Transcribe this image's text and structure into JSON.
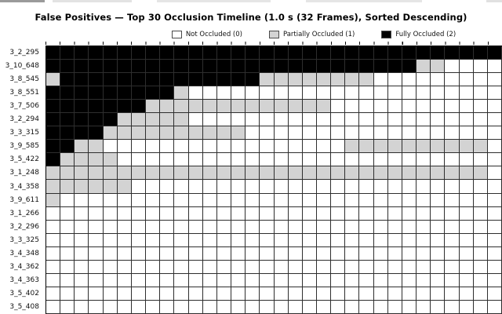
{
  "page": {
    "title": "False Positives — Top 30 Occlusion Timeline (1.0 s (32 Frames), Sorted Descending)"
  },
  "legend": [
    {
      "label": "Not Occluded (0)",
      "color": "#ffffff"
    },
    {
      "label": "Partially Occluded (1)",
      "color": "#d3d3d3"
    },
    {
      "label": "Fully Occluded (2)",
      "color": "#000000"
    }
  ],
  "chart_data": {
    "type": "heatmap",
    "title": "False Positives — Top 30 Occlusion Timeline (1.0 s (32 Frames), Sorted Descending)",
    "frames": 32,
    "rows_stated_in_title": 30,
    "rows_visible": 20,
    "value_states": [
      {
        "value": 0,
        "label": "Not Occluded (0)",
        "color": "#ffffff"
      },
      {
        "value": 1,
        "label": "Partially Occluded (1)",
        "color": "#d3d3d3"
      },
      {
        "value": 2,
        "label": "Fully Occluded (2)",
        "color": "#000000"
      }
    ],
    "grid": {
      "lines": "on",
      "line_color": "#2e2e2e"
    },
    "rows": [
      {
        "id": "3_2_295",
        "values": [
          2,
          2,
          2,
          2,
          2,
          2,
          2,
          2,
          2,
          2,
          2,
          2,
          2,
          2,
          2,
          2,
          2,
          2,
          2,
          2,
          2,
          2,
          2,
          2,
          2,
          2,
          2,
          2,
          2,
          2,
          2,
          2
        ]
      },
      {
        "id": "3_10_648",
        "values": [
          2,
          2,
          2,
          2,
          2,
          2,
          2,
          2,
          2,
          2,
          2,
          2,
          2,
          2,
          2,
          2,
          2,
          2,
          2,
          2,
          2,
          2,
          2,
          2,
          2,
          2,
          1,
          1,
          0,
          0,
          0,
          0
        ]
      },
      {
        "id": "3_8_545",
        "values": [
          1,
          2,
          2,
          2,
          2,
          2,
          2,
          2,
          2,
          2,
          2,
          2,
          2,
          2,
          2,
          1,
          1,
          1,
          1,
          1,
          1,
          1,
          1,
          0,
          0,
          0,
          0,
          0,
          0,
          0,
          0,
          0
        ]
      },
      {
        "id": "3_8_551",
        "values": [
          2,
          2,
          2,
          2,
          2,
          2,
          2,
          2,
          2,
          1,
          0,
          0,
          0,
          0,
          0,
          0,
          0,
          0,
          0,
          0,
          0,
          0,
          0,
          0,
          0,
          0,
          0,
          0,
          0,
          0,
          0,
          0
        ]
      },
      {
        "id": "3_7_506",
        "values": [
          2,
          2,
          2,
          2,
          2,
          2,
          2,
          1,
          1,
          1,
          1,
          1,
          1,
          1,
          1,
          1,
          1,
          1,
          1,
          1,
          0,
          0,
          0,
          0,
          0,
          0,
          0,
          0,
          0,
          0,
          0,
          0
        ]
      },
      {
        "id": "3_2_294",
        "values": [
          2,
          2,
          2,
          2,
          2,
          1,
          1,
          1,
          1,
          1,
          0,
          0,
          0,
          0,
          0,
          0,
          0,
          0,
          0,
          0,
          0,
          0,
          0,
          0,
          0,
          0,
          0,
          0,
          0,
          0,
          0,
          0
        ]
      },
      {
        "id": "3_3_315",
        "values": [
          2,
          2,
          2,
          2,
          1,
          1,
          1,
          1,
          1,
          1,
          1,
          1,
          1,
          1,
          0,
          0,
          0,
          0,
          0,
          0,
          0,
          0,
          0,
          0,
          0,
          0,
          0,
          0,
          0,
          0,
          0,
          0
        ]
      },
      {
        "id": "3_9_585",
        "values": [
          2,
          2,
          1,
          1,
          0,
          0,
          0,
          0,
          0,
          0,
          0,
          0,
          0,
          0,
          0,
          0,
          0,
          0,
          0,
          0,
          0,
          1,
          1,
          1,
          1,
          1,
          1,
          1,
          1,
          1,
          1,
          0
        ]
      },
      {
        "id": "3_5_422",
        "values": [
          2,
          1,
          1,
          1,
          1,
          0,
          0,
          0,
          0,
          0,
          0,
          0,
          0,
          0,
          0,
          0,
          0,
          0,
          0,
          0,
          0,
          0,
          0,
          0,
          0,
          0,
          0,
          0,
          0,
          0,
          0,
          0
        ]
      },
      {
        "id": "3_1_248",
        "values": [
          1,
          1,
          1,
          1,
          1,
          1,
          1,
          1,
          1,
          1,
          1,
          1,
          1,
          1,
          1,
          1,
          1,
          1,
          1,
          1,
          1,
          1,
          1,
          1,
          1,
          1,
          1,
          1,
          1,
          1,
          1,
          0
        ]
      },
      {
        "id": "3_4_358",
        "values": [
          1,
          1,
          1,
          1,
          1,
          1,
          0,
          0,
          0,
          0,
          0,
          0,
          0,
          0,
          0,
          0,
          0,
          0,
          0,
          0,
          0,
          0,
          0,
          0,
          0,
          0,
          0,
          0,
          0,
          0,
          0,
          0
        ]
      },
      {
        "id": "3_9_611",
        "values": [
          1,
          0,
          0,
          0,
          0,
          0,
          0,
          0,
          0,
          0,
          0,
          0,
          0,
          0,
          0,
          0,
          0,
          0,
          0,
          0,
          0,
          0,
          0,
          0,
          0,
          0,
          0,
          0,
          0,
          0,
          0,
          0
        ]
      },
      {
        "id": "3_1_266",
        "values": [
          0,
          0,
          0,
          0,
          0,
          0,
          0,
          0,
          0,
          0,
          0,
          0,
          0,
          0,
          0,
          0,
          0,
          0,
          0,
          0,
          0,
          0,
          0,
          0,
          0,
          0,
          0,
          0,
          0,
          0,
          0,
          0
        ]
      },
      {
        "id": "3_2_296",
        "values": [
          0,
          0,
          0,
          0,
          0,
          0,
          0,
          0,
          0,
          0,
          0,
          0,
          0,
          0,
          0,
          0,
          0,
          0,
          0,
          0,
          0,
          0,
          0,
          0,
          0,
          0,
          0,
          0,
          0,
          0,
          0,
          0
        ]
      },
      {
        "id": "3_3_325",
        "values": [
          0,
          0,
          0,
          0,
          0,
          0,
          0,
          0,
          0,
          0,
          0,
          0,
          0,
          0,
          0,
          0,
          0,
          0,
          0,
          0,
          0,
          0,
          0,
          0,
          0,
          0,
          0,
          0,
          0,
          0,
          0,
          0
        ]
      },
      {
        "id": "3_4_348",
        "values": [
          0,
          0,
          0,
          0,
          0,
          0,
          0,
          0,
          0,
          0,
          0,
          0,
          0,
          0,
          0,
          0,
          0,
          0,
          0,
          0,
          0,
          0,
          0,
          0,
          0,
          0,
          0,
          0,
          0,
          0,
          0,
          0
        ]
      },
      {
        "id": "3_4_362",
        "values": [
          0,
          0,
          0,
          0,
          0,
          0,
          0,
          0,
          0,
          0,
          0,
          0,
          0,
          0,
          0,
          0,
          0,
          0,
          0,
          0,
          0,
          0,
          0,
          0,
          0,
          0,
          0,
          0,
          0,
          0,
          0,
          0
        ]
      },
      {
        "id": "3_4_363",
        "values": [
          0,
          0,
          0,
          0,
          0,
          0,
          0,
          0,
          0,
          0,
          0,
          0,
          0,
          0,
          0,
          0,
          0,
          0,
          0,
          0,
          0,
          0,
          0,
          0,
          0,
          0,
          0,
          0,
          0,
          0,
          0,
          0
        ]
      },
      {
        "id": "3_5_402",
        "values": [
          0,
          0,
          0,
          0,
          0,
          0,
          0,
          0,
          0,
          0,
          0,
          0,
          0,
          0,
          0,
          0,
          0,
          0,
          0,
          0,
          0,
          0,
          0,
          0,
          0,
          0,
          0,
          0,
          0,
          0,
          0,
          0
        ]
      },
      {
        "id": "3_5_408",
        "values": [
          0,
          0,
          0,
          0,
          0,
          0,
          0,
          0,
          0,
          0,
          0,
          0,
          0,
          0,
          0,
          0,
          0,
          0,
          0,
          0,
          0,
          0,
          0,
          0,
          0,
          0,
          0,
          0,
          0,
          0,
          0,
          0
        ]
      }
    ]
  }
}
